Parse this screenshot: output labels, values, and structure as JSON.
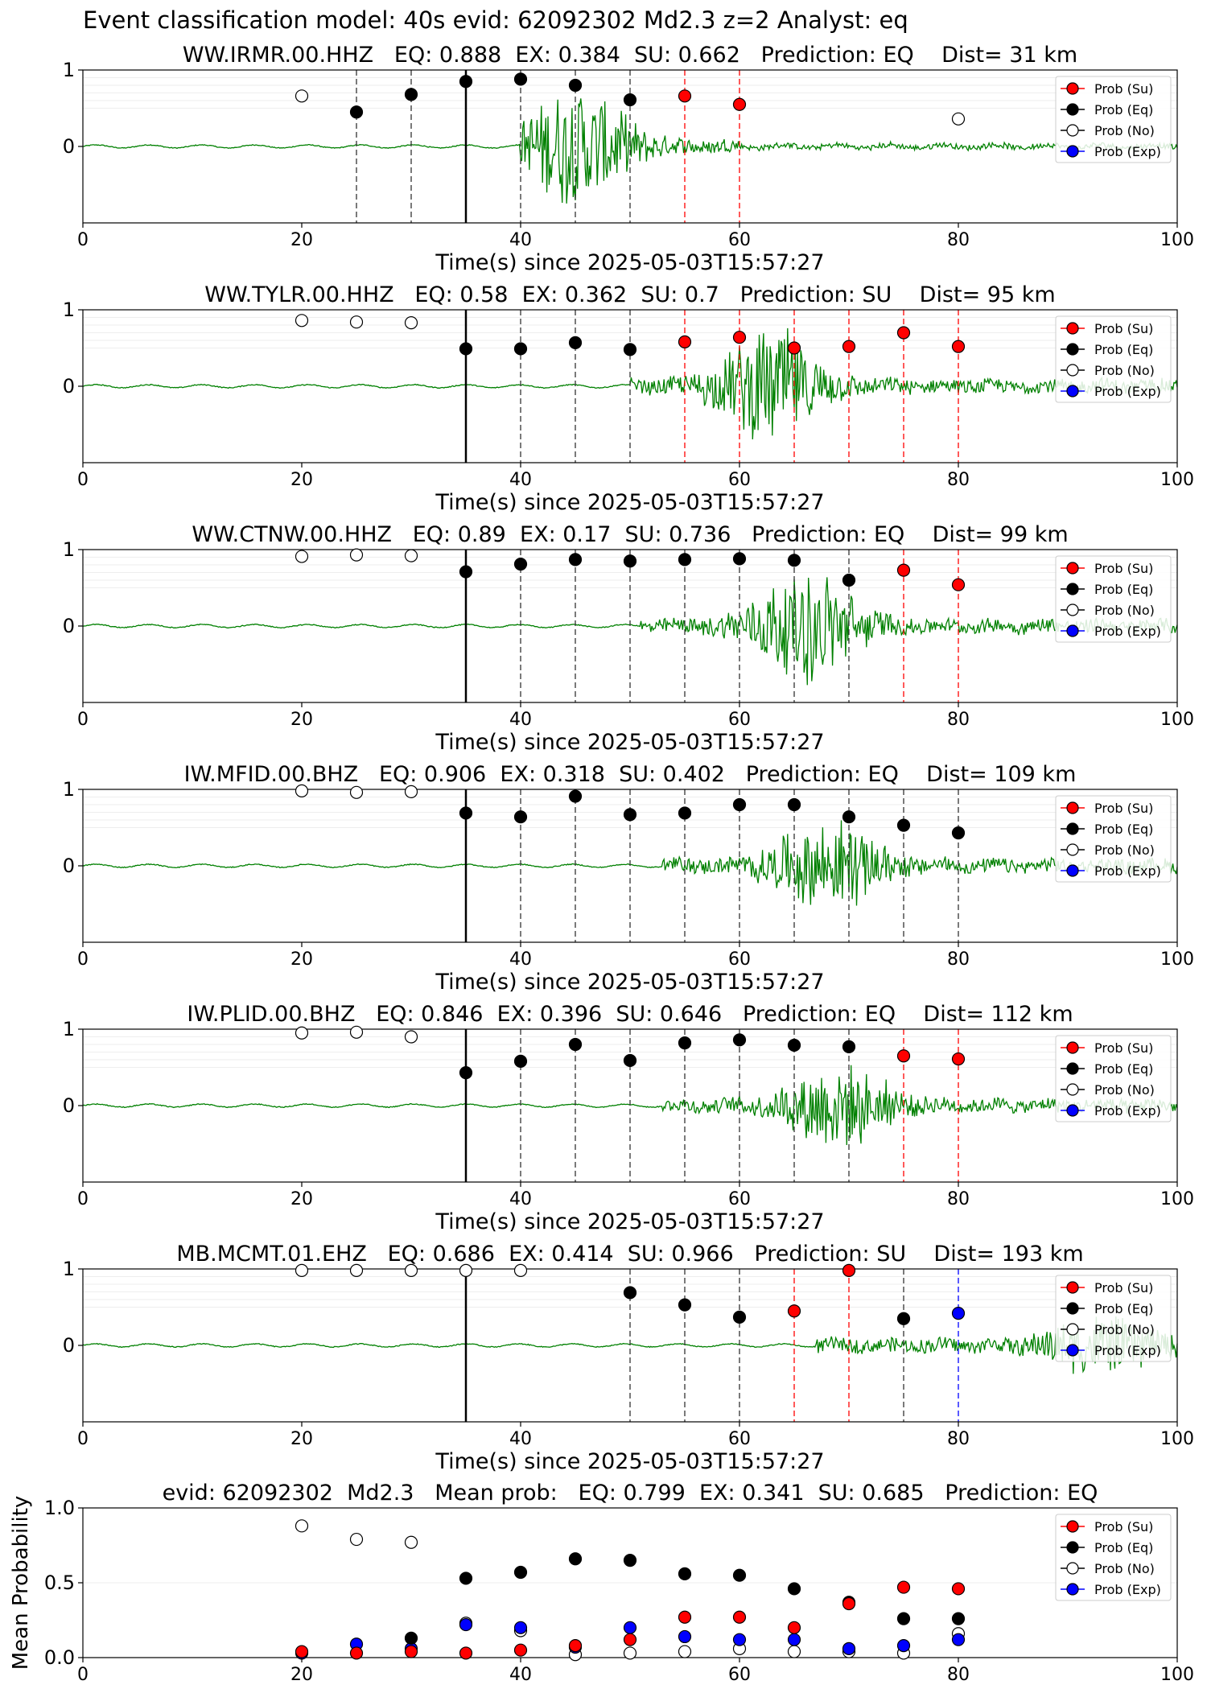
{
  "figure": {
    "suptitle": "Event classification model: 40s evid: 62092302 Md2.3 z=2 Analyst: eq"
  },
  "colors": {
    "su": "#ff0000",
    "eq": "#000000",
    "no": "#ffffff",
    "exp": "#0000ff",
    "waveform": "#008000",
    "pick_line": "#000000"
  },
  "legend": [
    "Prob (Su)",
    "Prob (Eq)",
    "Prob (No)",
    "Prob (Exp)"
  ],
  "chart_data": [
    {
      "type": "scatter",
      "title": "WW.IRMR.00.HHZ   EQ: 0.888  EX: 0.384  SU: 0.662   Prediction: EQ    Dist= 31 km",
      "xlabel": "Time(s) since 2025-05-03T15:57:27",
      "xlim": [
        0,
        100
      ],
      "ylim": [
        -1,
        1
      ],
      "xticks": [
        "0",
        "20",
        "40",
        "60",
        "80",
        "100"
      ],
      "yticks": [
        "1",
        "0"
      ],
      "pick_time": 35,
      "signal": {
        "start": 40,
        "end": 60,
        "amp": 0.75,
        "peak": 45
      },
      "legend_position": "top-right",
      "points": [
        {
          "x": 20,
          "y": 0.66,
          "cls": "no"
        },
        {
          "x": 25,
          "y": 0.45,
          "cls": "eq"
        },
        {
          "x": 30,
          "y": 0.68,
          "cls": "eq"
        },
        {
          "x": 35,
          "y": 0.85,
          "cls": "eq"
        },
        {
          "x": 40,
          "y": 0.88,
          "cls": "eq"
        },
        {
          "x": 45,
          "y": 0.8,
          "cls": "eq"
        },
        {
          "x": 50,
          "y": 0.61,
          "cls": "eq"
        },
        {
          "x": 55,
          "y": 0.66,
          "cls": "su"
        },
        {
          "x": 60,
          "y": 0.55,
          "cls": "su"
        },
        {
          "x": 80,
          "y": 0.36,
          "cls": "no"
        }
      ]
    },
    {
      "type": "scatter",
      "title": "WW.TYLR.00.HHZ   EQ: 0.58  EX: 0.362  SU: 0.7   Prediction: SU    Dist= 95 km",
      "xlabel": "Time(s) since 2025-05-03T15:57:27",
      "xlim": [
        0,
        100
      ],
      "ylim": [
        -1,
        1
      ],
      "xticks": [
        "0",
        "20",
        "40",
        "60",
        "80",
        "100"
      ],
      "yticks": [
        "1",
        "0"
      ],
      "pick_time": 35,
      "signal": {
        "start": 50,
        "end": 100,
        "amp": 0.7,
        "peak": 63
      },
      "legend_position": "top-right",
      "points": [
        {
          "x": 20,
          "y": 0.86,
          "cls": "no"
        },
        {
          "x": 25,
          "y": 0.84,
          "cls": "no"
        },
        {
          "x": 30,
          "y": 0.83,
          "cls": "no"
        },
        {
          "x": 35,
          "y": 0.49,
          "cls": "eq"
        },
        {
          "x": 40,
          "y": 0.49,
          "cls": "eq"
        },
        {
          "x": 45,
          "y": 0.57,
          "cls": "eq"
        },
        {
          "x": 50,
          "y": 0.48,
          "cls": "eq"
        },
        {
          "x": 55,
          "y": 0.58,
          "cls": "su"
        },
        {
          "x": 60,
          "y": 0.64,
          "cls": "su"
        },
        {
          "x": 65,
          "y": 0.5,
          "cls": "su"
        },
        {
          "x": 70,
          "y": 0.52,
          "cls": "su"
        },
        {
          "x": 75,
          "y": 0.7,
          "cls": "su"
        },
        {
          "x": 80,
          "y": 0.52,
          "cls": "su"
        }
      ]
    },
    {
      "type": "scatter",
      "title": "WW.CTNW.00.HHZ   EQ: 0.89  EX: 0.17  SU: 0.736   Prediction: EQ    Dist= 99 km",
      "xlabel": "Time(s) since 2025-05-03T15:57:27",
      "xlim": [
        0,
        100
      ],
      "ylim": [
        -1,
        1
      ],
      "xticks": [
        "0",
        "20",
        "40",
        "60",
        "80",
        "100"
      ],
      "yticks": [
        "1",
        "0"
      ],
      "pick_time": 35,
      "signal": {
        "start": 51,
        "end": 100,
        "amp": 0.7,
        "peak": 66
      },
      "legend_position": "top-right",
      "points": [
        {
          "x": 20,
          "y": 0.91,
          "cls": "no"
        },
        {
          "x": 25,
          "y": 0.93,
          "cls": "no"
        },
        {
          "x": 30,
          "y": 0.92,
          "cls": "no"
        },
        {
          "x": 35,
          "y": 0.71,
          "cls": "eq"
        },
        {
          "x": 40,
          "y": 0.81,
          "cls": "eq"
        },
        {
          "x": 45,
          "y": 0.87,
          "cls": "eq"
        },
        {
          "x": 50,
          "y": 0.85,
          "cls": "eq"
        },
        {
          "x": 55,
          "y": 0.87,
          "cls": "eq"
        },
        {
          "x": 60,
          "y": 0.88,
          "cls": "eq"
        },
        {
          "x": 65,
          "y": 0.86,
          "cls": "eq"
        },
        {
          "x": 70,
          "y": 0.6,
          "cls": "eq"
        },
        {
          "x": 75,
          "y": 0.73,
          "cls": "su"
        },
        {
          "x": 80,
          "y": 0.54,
          "cls": "su"
        }
      ]
    },
    {
      "type": "scatter",
      "title": "IW.MFID.00.BHZ   EQ: 0.906  EX: 0.318  SU: 0.402   Prediction: EQ    Dist= 109 km",
      "xlabel": "Time(s) since 2025-05-03T15:57:27",
      "xlim": [
        0,
        100
      ],
      "ylim": [
        -1,
        1
      ],
      "xticks": [
        "0",
        "20",
        "40",
        "60",
        "80",
        "100"
      ],
      "yticks": [
        "1",
        "0"
      ],
      "pick_time": 35,
      "signal": {
        "start": 53,
        "end": 100,
        "amp": 0.55,
        "peak": 68
      },
      "legend_position": "top-right",
      "points": [
        {
          "x": 20,
          "y": 0.98,
          "cls": "no"
        },
        {
          "x": 25,
          "y": 0.96,
          "cls": "no"
        },
        {
          "x": 30,
          "y": 0.97,
          "cls": "no"
        },
        {
          "x": 35,
          "y": 0.69,
          "cls": "eq"
        },
        {
          "x": 40,
          "y": 0.64,
          "cls": "eq"
        },
        {
          "x": 45,
          "y": 0.91,
          "cls": "eq"
        },
        {
          "x": 50,
          "y": 0.67,
          "cls": "eq"
        },
        {
          "x": 55,
          "y": 0.69,
          "cls": "eq"
        },
        {
          "x": 60,
          "y": 0.8,
          "cls": "eq"
        },
        {
          "x": 65,
          "y": 0.8,
          "cls": "eq"
        },
        {
          "x": 70,
          "y": 0.64,
          "cls": "eq"
        },
        {
          "x": 75,
          "y": 0.53,
          "cls": "eq"
        },
        {
          "x": 80,
          "y": 0.43,
          "cls": "eq"
        }
      ]
    },
    {
      "type": "scatter",
      "title": "IW.PLID.00.BHZ   EQ: 0.846  EX: 0.396  SU: 0.646   Prediction: EQ    Dist= 112 km",
      "xlabel": "Time(s) since 2025-05-03T15:57:27",
      "xlim": [
        0,
        100
      ],
      "ylim": [
        -1,
        1
      ],
      "xticks": [
        "0",
        "20",
        "40",
        "60",
        "80",
        "100"
      ],
      "yticks": [
        "1",
        "0"
      ],
      "pick_time": 35,
      "signal": {
        "start": 53,
        "end": 100,
        "amp": 0.5,
        "peak": 69
      },
      "legend_position": "top-right",
      "points": [
        {
          "x": 20,
          "y": 0.95,
          "cls": "no"
        },
        {
          "x": 25,
          "y": 0.96,
          "cls": "no"
        },
        {
          "x": 30,
          "y": 0.9,
          "cls": "no"
        },
        {
          "x": 35,
          "y": 0.43,
          "cls": "eq"
        },
        {
          "x": 40,
          "y": 0.58,
          "cls": "eq"
        },
        {
          "x": 45,
          "y": 0.8,
          "cls": "eq"
        },
        {
          "x": 50,
          "y": 0.59,
          "cls": "eq"
        },
        {
          "x": 55,
          "y": 0.82,
          "cls": "eq"
        },
        {
          "x": 60,
          "y": 0.86,
          "cls": "eq"
        },
        {
          "x": 65,
          "y": 0.79,
          "cls": "eq"
        },
        {
          "x": 70,
          "y": 0.77,
          "cls": "eq"
        },
        {
          "x": 75,
          "y": 0.65,
          "cls": "su"
        },
        {
          "x": 80,
          "y": 0.61,
          "cls": "su"
        }
      ]
    },
    {
      "type": "scatter",
      "title": "MB.MCMT.01.EHZ   EQ: 0.686  EX: 0.414  SU: 0.966   Prediction: SU    Dist= 193 km",
      "xlabel": "Time(s) since 2025-05-03T15:57:27",
      "xlim": [
        0,
        100
      ],
      "ylim": [
        -1,
        1
      ],
      "xticks": [
        "0",
        "20",
        "40",
        "60",
        "80",
        "100"
      ],
      "yticks": [
        "1",
        "0"
      ],
      "pick_time": 35,
      "signal": {
        "start": 67,
        "end": 100,
        "amp": 0.35,
        "peak": 93
      },
      "legend_position": "top-right",
      "points": [
        {
          "x": 20,
          "y": 0.98,
          "cls": "no"
        },
        {
          "x": 25,
          "y": 0.98,
          "cls": "no"
        },
        {
          "x": 30,
          "y": 0.98,
          "cls": "no"
        },
        {
          "x": 35,
          "y": 0.98,
          "cls": "no"
        },
        {
          "x": 40,
          "y": 0.98,
          "cls": "no"
        },
        {
          "x": 50,
          "y": 0.69,
          "cls": "eq"
        },
        {
          "x": 55,
          "y": 0.53,
          "cls": "eq"
        },
        {
          "x": 60,
          "y": 0.37,
          "cls": "eq"
        },
        {
          "x": 65,
          "y": 0.45,
          "cls": "su"
        },
        {
          "x": 70,
          "y": 0.98,
          "cls": "su"
        },
        {
          "x": 75,
          "y": 0.35,
          "cls": "eq"
        },
        {
          "x": 80,
          "y": 0.42,
          "cls": "exp"
        }
      ]
    },
    {
      "type": "scatter",
      "title": "evid: 62092302  Md2.3   Mean prob:   EQ: 0.799  EX: 0.341  SU: 0.685   Prediction: EQ",
      "ylabel": "Mean Probability",
      "xlim": [
        0,
        100
      ],
      "ylim": [
        0,
        1
      ],
      "xticks": [
        "0",
        "20",
        "40",
        "60",
        "80",
        "100"
      ],
      "yticks": [
        "1.0",
        "0.5",
        "0.0"
      ],
      "legend_position": "top-right",
      "series": [
        {
          "name": "Prob (No)",
          "cls": "no",
          "x": [
            20,
            25,
            30,
            35,
            40,
            45,
            50,
            55,
            60,
            65,
            70,
            75,
            80
          ],
          "y": [
            0.88,
            0.79,
            0.77,
            0.23,
            0.18,
            0.02,
            0.03,
            0.04,
            0.06,
            0.04,
            0.04,
            0.03,
            0.16
          ]
        },
        {
          "name": "Prob (Exp)",
          "cls": "exp",
          "x": [
            20,
            25,
            30,
            35,
            40,
            45,
            50,
            55,
            60,
            65,
            70,
            75,
            80
          ],
          "y": [
            0.03,
            0.09,
            0.06,
            0.22,
            0.2,
            0.07,
            0.2,
            0.14,
            0.12,
            0.12,
            0.06,
            0.08,
            0.12
          ]
        },
        {
          "name": "Prob (Eq)",
          "cls": "eq",
          "x": [
            35,
            40,
            45,
            50,
            55,
            60,
            65,
            70,
            75,
            80
          ],
          "y": [
            0.53,
            0.57,
            0.66,
            0.65,
            0.56,
            0.55,
            0.46,
            0.37,
            0.26,
            0.26
          ]
        },
        {
          "name": "Prob (Su)",
          "cls": "su",
          "x": [
            20,
            25,
            30,
            35,
            40,
            45,
            50,
            55,
            60,
            65,
            70,
            75,
            80
          ],
          "y": [
            0.04,
            0.03,
            0.04,
            0.03,
            0.05,
            0.08,
            0.12,
            0.27,
            0.27,
            0.2,
            0.36,
            0.47,
            0.46
          ]
        },
        {
          "name": "Prob (Eq)",
          "cls": "eq",
          "x": [
            30
          ],
          "y": [
            0.13
          ]
        }
      ]
    }
  ]
}
